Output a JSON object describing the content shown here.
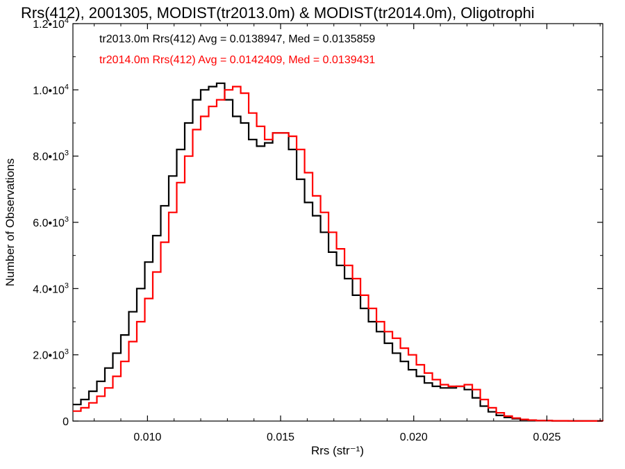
{
  "chart_data": {
    "type": "line",
    "title": "Rrs(412), 2001305, MODIST(tr2013.0m) & MODIST(tr2014.0m), Oligotrophi",
    "xlabel": "Rrs (str⁻¹)",
    "ylabel": "Number of Observations",
    "xlim": [
      0.0072,
      0.0271
    ],
    "ylim": [
      0,
      12000
    ],
    "x_ticks": [
      {
        "value": 0.01,
        "label": "0.010"
      },
      {
        "value": 0.015,
        "label": "0.015"
      },
      {
        "value": 0.02,
        "label": "0.020"
      },
      {
        "value": 0.025,
        "label": "0.025"
      }
    ],
    "y_ticks": [
      {
        "value": 0,
        "mant": "0",
        "exp": ""
      },
      {
        "value": 2000,
        "mant": "2.0•10",
        "exp": "3"
      },
      {
        "value": 4000,
        "mant": "4.0•10",
        "exp": "3"
      },
      {
        "value": 6000,
        "mant": "6.0•10",
        "exp": "3"
      },
      {
        "value": 8000,
        "mant": "8.0•10",
        "exp": "3"
      },
      {
        "value": 10000,
        "mant": "1.0•10",
        "exp": "4"
      },
      {
        "value": 12000,
        "mant": "1.2•10",
        "exp": "4"
      }
    ],
    "annotations": [
      {
        "text": "tr2013.0m Rrs(412) Avg = 0.0138947, Med = 0.0135859",
        "color": "#000000"
      },
      {
        "text": "tr2014.0m Rrs(412) Avg = 0.0142409, Med = 0.0139431",
        "color": "#ff0000"
      }
    ],
    "grid": false,
    "series": [
      {
        "color": "#000000",
        "step": true,
        "x": [
          0.0072,
          0.0075,
          0.0078,
          0.0081,
          0.0084,
          0.0087,
          0.009,
          0.0093,
          0.0096,
          0.0099,
          0.0102,
          0.0105,
          0.0108,
          0.0111,
          0.0114,
          0.0117,
          0.012,
          0.0123,
          0.0126,
          0.0129,
          0.0132,
          0.0135,
          0.0138,
          0.0141,
          0.0144,
          0.0147,
          0.015,
          0.0153,
          0.0156,
          0.0159,
          0.0162,
          0.0165,
          0.0168,
          0.0171,
          0.0174,
          0.0177,
          0.018,
          0.0183,
          0.0186,
          0.0189,
          0.0192,
          0.0195,
          0.0198,
          0.0201,
          0.0204,
          0.0207,
          0.021,
          0.0213,
          0.0216,
          0.0219,
          0.0222,
          0.0225,
          0.0228,
          0.0231,
          0.0234,
          0.0237,
          0.024,
          0.0243,
          0.0246,
          0.0252,
          0.0258,
          0.0264,
          0.0271
        ],
        "y": [
          500,
          650,
          900,
          1200,
          1600,
          2050,
          2600,
          3300,
          4000,
          4800,
          5600,
          6500,
          7400,
          8200,
          9000,
          9700,
          10000,
          10100,
          10200,
          9700,
          9200,
          9000,
          8500,
          8300,
          8400,
          8700,
          8700,
          8200,
          7300,
          6600,
          6200,
          5700,
          5100,
          4700,
          4300,
          3800,
          3400,
          3000,
          2700,
          2350,
          2050,
          1800,
          1550,
          1350,
          1150,
          1050,
          1000,
          1000,
          1050,
          950,
          700,
          450,
          280,
          170,
          110,
          70,
          40,
          25,
          15,
          8,
          4,
          2,
          1
        ]
      },
      {
        "color": "#ff0000",
        "step": true,
        "x": [
          0.0072,
          0.0075,
          0.0078,
          0.0081,
          0.0084,
          0.0087,
          0.009,
          0.0093,
          0.0096,
          0.0099,
          0.0102,
          0.0105,
          0.0108,
          0.0111,
          0.0114,
          0.0117,
          0.012,
          0.0123,
          0.0126,
          0.0129,
          0.0132,
          0.0135,
          0.0138,
          0.0141,
          0.0144,
          0.0147,
          0.015,
          0.0153,
          0.0156,
          0.0159,
          0.0162,
          0.0165,
          0.0168,
          0.0171,
          0.0174,
          0.0177,
          0.018,
          0.0183,
          0.0186,
          0.0189,
          0.0192,
          0.0195,
          0.0198,
          0.0201,
          0.0204,
          0.0207,
          0.021,
          0.0213,
          0.0216,
          0.0219,
          0.0222,
          0.0225,
          0.0228,
          0.0231,
          0.0234,
          0.0237,
          0.024,
          0.0243,
          0.0246,
          0.0252,
          0.0258,
          0.0264,
          0.0271
        ],
        "y": [
          300,
          400,
          550,
          750,
          1000,
          1350,
          1800,
          2400,
          3000,
          3700,
          4500,
          5400,
          6300,
          7200,
          8000,
          8800,
          9200,
          9500,
          9700,
          10000,
          10100,
          9900,
          9300,
          8900,
          8500,
          8700,
          8700,
          8600,
          8200,
          7500,
          6800,
          6300,
          5700,
          5200,
          4700,
          4300,
          3800,
          3400,
          3000,
          2700,
          2500,
          2200,
          2000,
          1700,
          1450,
          1250,
          1100,
          1050,
          1050,
          1100,
          950,
          650,
          400,
          250,
          150,
          90,
          50,
          30,
          15,
          8,
          4,
          2,
          1
        ]
      }
    ]
  }
}
